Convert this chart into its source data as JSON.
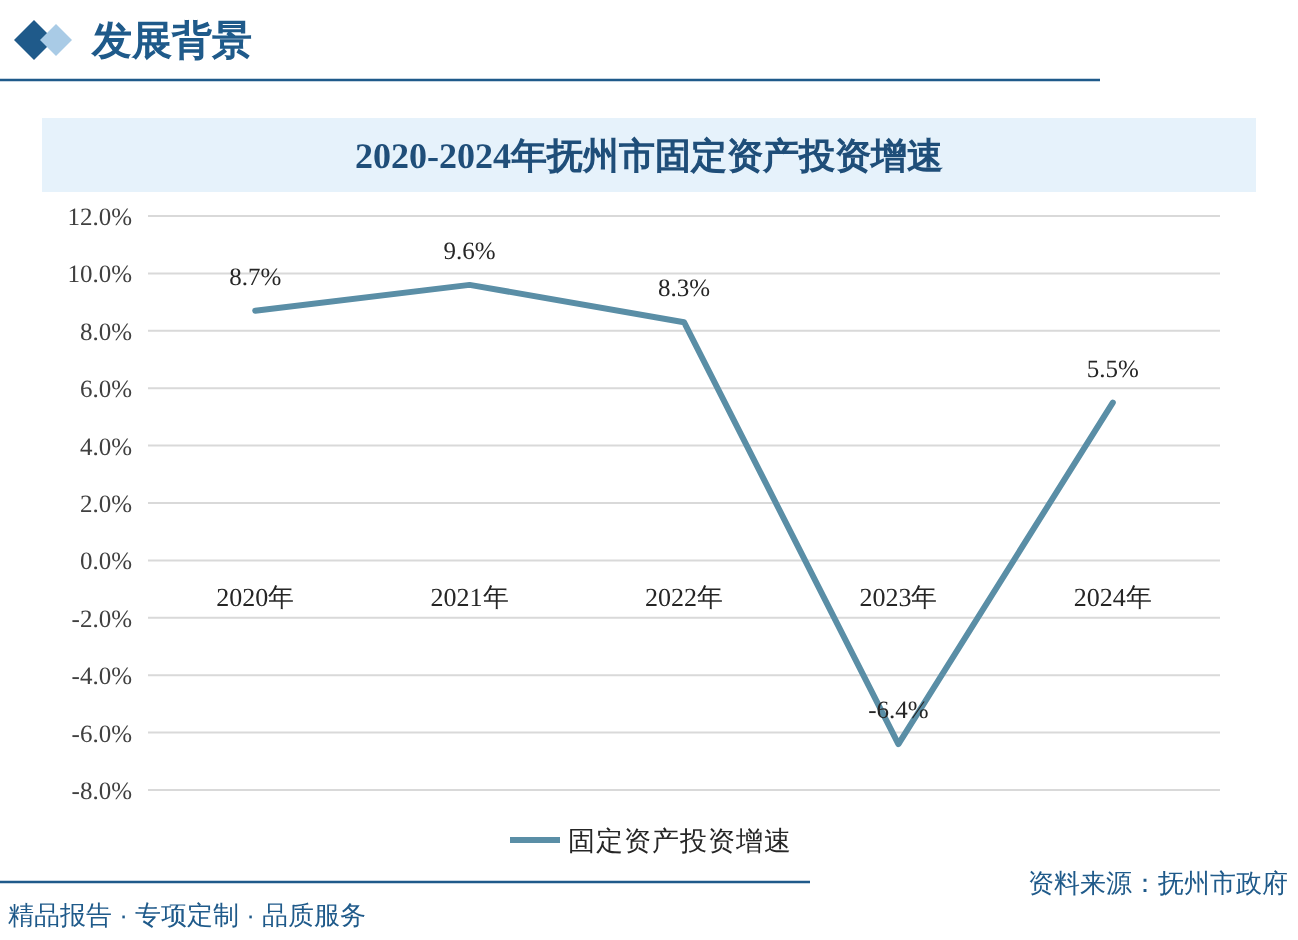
{
  "chart_data": {
    "type": "line",
    "title": "2020-2024年抚州市固定资产投资增速",
    "categories": [
      "2020年",
      "2021年",
      "2022年",
      "2023年",
      "2024年"
    ],
    "series": [
      {
        "name": "固定资产投资增速",
        "color": "#5a8ea6",
        "values": [
          8.7,
          9.6,
          8.3,
          -6.4,
          5.5
        ],
        "value_labels": [
          "8.7%",
          "9.6%",
          "8.3%",
          "-6.4%",
          "5.5%"
        ]
      }
    ],
    "ylim": [
      -8,
      12
    ],
    "yticks": [
      {
        "value": 12,
        "label": "12.0%"
      },
      {
        "value": 10,
        "label": "10.0%"
      },
      {
        "value": 8,
        "label": "8.0%"
      },
      {
        "value": 6,
        "label": "6.0%"
      },
      {
        "value": 4,
        "label": "4.0%"
      },
      {
        "value": 2,
        "label": "2.0%"
      },
      {
        "value": 0,
        "label": "0.0%"
      },
      {
        "value": -2,
        "label": "-2.0%"
      },
      {
        "value": -4,
        "label": "-4.0%"
      },
      {
        "value": -6,
        "label": "-6.0%"
      },
      {
        "value": -8,
        "label": "-8.0%"
      }
    ],
    "grid": "y",
    "legend": "bottom",
    "annotations": [
      "发展背景",
      "资料来源：抚州市政府",
      "精品报告 · 专项定制 · 品质服务"
    ]
  }
}
